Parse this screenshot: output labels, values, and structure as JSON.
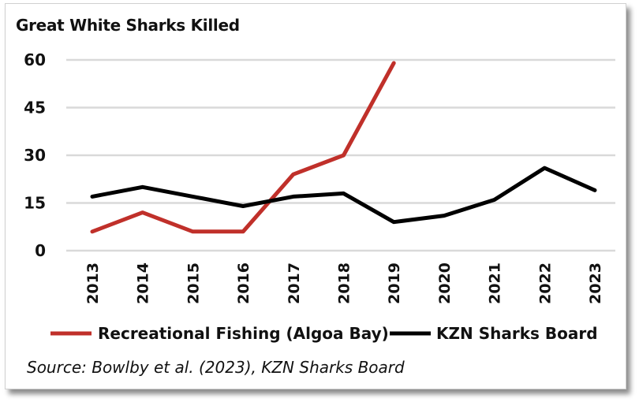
{
  "chart_data": {
    "type": "line",
    "title": "Great White Sharks Killed",
    "xlabel": "",
    "ylabel": "",
    "x": [
      "2013",
      "2014",
      "2015",
      "2016",
      "2017",
      "2018",
      "2019",
      "2020",
      "2021",
      "2022",
      "2023"
    ],
    "yticks": [
      "0",
      "15",
      "30",
      "45",
      "60"
    ],
    "ylim": [
      0,
      60
    ],
    "grid": true,
    "legend_position": "bottom",
    "series": [
      {
        "name": "Recreational Fishing (Algoa Bay)",
        "color": "#c0302a",
        "values": [
          6,
          12,
          6,
          6,
          24,
          30,
          59,
          null,
          null,
          null,
          null
        ]
      },
      {
        "name": "KZN Sharks Board",
        "color": "#000000",
        "values": [
          17,
          20,
          17,
          14,
          17,
          18,
          9,
          11,
          16,
          26,
          19
        ]
      }
    ],
    "source": "Source: Bowlby et al. (2023), KZN Sharks Board"
  }
}
